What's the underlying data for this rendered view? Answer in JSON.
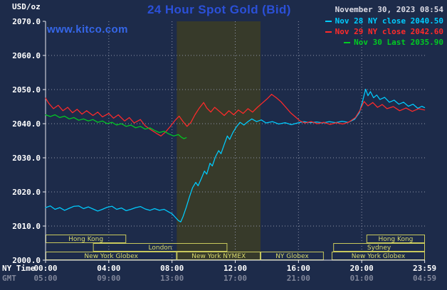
{
  "header": {
    "units": "USD/oz",
    "title": "24 Hour Spot Gold (Bid)",
    "datetime": "November 30, 2023 08:54",
    "site": "www.kitco.com"
  },
  "legend": [
    {
      "label": "Nov 28 NY close 2040.50",
      "color": "#00ccff"
    },
    {
      "label": "Nov 29 NY close 2042.60",
      "color": "#ff2a2a"
    },
    {
      "label": "Nov 30 Last 2035.90",
      "color": "#00cc22"
    }
  ],
  "axes": {
    "ny_time_label": "NY Time",
    "gmt_label": "GMT",
    "y_ticks": [
      {
        "value": 2070,
        "label": "2070.0"
      },
      {
        "value": 2060,
        "label": "2060.0"
      },
      {
        "value": 2050,
        "label": "2050.0"
      },
      {
        "value": 2040,
        "label": "2040.0"
      },
      {
        "value": 2030,
        "label": "2030.0"
      },
      {
        "value": 2020,
        "label": "2020.0"
      },
      {
        "value": 2010,
        "label": "2010.0"
      },
      {
        "value": 2000,
        "label": "2000.0"
      }
    ],
    "x_ticks": [
      {
        "hour": 0,
        "ny": "00:00",
        "gmt": "05:00"
      },
      {
        "hour": 4,
        "ny": "04:00",
        "gmt": "09:00"
      },
      {
        "hour": 8,
        "ny": "08:00",
        "gmt": "13:00"
      },
      {
        "hour": 12,
        "ny": "12:00",
        "gmt": "17:00"
      },
      {
        "hour": 16,
        "ny": "16:00",
        "gmt": "21:00"
      },
      {
        "hour": 20,
        "ny": "20:00",
        "gmt": "01:00"
      },
      {
        "hour": 23.983,
        "ny": "23:59",
        "gmt": "04:59"
      }
    ]
  },
  "sessions": [
    {
      "row": 0,
      "label": "Hong Kong",
      "start": 0,
      "end": 5.1
    },
    {
      "row": 0,
      "label": "Hong Kong",
      "start": 20.3,
      "end": 24
    },
    {
      "row": 1,
      "label": "London",
      "start": 3.0,
      "end": 11.5
    },
    {
      "row": 1,
      "label": "Sydney",
      "start": 18.2,
      "end": 24
    },
    {
      "row": 2,
      "label": "New York Globex",
      "start": 0,
      "end": 8.3
    },
    {
      "row": 2,
      "label": "New York NYMEX",
      "start": 8.3,
      "end": 13.6
    },
    {
      "row": 2,
      "label": "NY Globex",
      "start": 13.6,
      "end": 17.6
    },
    {
      "row": 2,
      "label": "New York Globex",
      "start": 18.1,
      "end": 24
    }
  ],
  "colors": {
    "background": "#1d2b4a",
    "band": "#373a2a",
    "grid": "#8f94a8",
    "axis": "#e9e9f0",
    "session_border": "#c8c95c",
    "session_text": "#d9da6b",
    "title": "#2b50d8",
    "site_link": "#3566e8",
    "datetime_text": "#dcdce6",
    "tick_text": "#ffffff",
    "gmt_text": "#80869a"
  },
  "chart_data": {
    "type": "line",
    "title": "24 Hour Spot Gold (Bid)",
    "ylabel": "USD/oz",
    "xlabel": "NY Time (hours)",
    "ylim": [
      2000,
      2070
    ],
    "xlim_hours": [
      0,
      24
    ],
    "grid": true,
    "legend_position": "top-right",
    "nymex_band_hours": [
      8.3,
      13.6
    ],
    "series": [
      {
        "id": "nov28",
        "name": "Nov 28 NY close 2040.50",
        "color": "#00ccff",
        "points": [
          [
            0,
            2015.4
          ],
          [
            0.3,
            2015.9
          ],
          [
            0.6,
            2014.9
          ],
          [
            0.9,
            2015.4
          ],
          [
            1.2,
            2014.6
          ],
          [
            1.5,
            2015.2
          ],
          [
            1.8,
            2015.8
          ],
          [
            2.1,
            2015.9
          ],
          [
            2.4,
            2015.1
          ],
          [
            2.7,
            2015.6
          ],
          [
            3,
            2015.0
          ],
          [
            3.3,
            2014.4
          ],
          [
            3.6,
            2014.9
          ],
          [
            3.9,
            2015.5
          ],
          [
            4.2,
            2015.8
          ],
          [
            4.5,
            2014.9
          ],
          [
            4.8,
            2015.3
          ],
          [
            5.1,
            2014.5
          ],
          [
            5.4,
            2014.9
          ],
          [
            5.7,
            2015.4
          ],
          [
            6,
            2015.7
          ],
          [
            6.3,
            2015.0
          ],
          [
            6.6,
            2014.6
          ],
          [
            6.9,
            2015.1
          ],
          [
            7.2,
            2014.6
          ],
          [
            7.5,
            2014.9
          ],
          [
            7.8,
            2014.1
          ],
          [
            8.0,
            2013.6
          ],
          [
            8.2,
            2012.6
          ],
          [
            8.4,
            2011.6
          ],
          [
            8.55,
            2011.2
          ],
          [
            8.7,
            2012.8
          ],
          [
            8.9,
            2015.5
          ],
          [
            9.1,
            2018.5
          ],
          [
            9.3,
            2021.2
          ],
          [
            9.5,
            2022.8
          ],
          [
            9.65,
            2021.8
          ],
          [
            9.85,
            2023.9
          ],
          [
            10.05,
            2026.1
          ],
          [
            10.2,
            2025.2
          ],
          [
            10.4,
            2028.4
          ],
          [
            10.55,
            2027.6
          ],
          [
            10.75,
            2030.3
          ],
          [
            10.95,
            2032.1
          ],
          [
            11.1,
            2031.2
          ],
          [
            11.3,
            2033.9
          ],
          [
            11.5,
            2036.4
          ],
          [
            11.65,
            2035.4
          ],
          [
            11.85,
            2037.4
          ],
          [
            12.05,
            2038.9
          ],
          [
            12.3,
            2040.4
          ],
          [
            12.55,
            2039.6
          ],
          [
            12.8,
            2040.6
          ],
          [
            13.05,
            2041.4
          ],
          [
            13.35,
            2040.6
          ],
          [
            13.65,
            2041.1
          ],
          [
            13.95,
            2040.2
          ],
          [
            14.35,
            2040.6
          ],
          [
            14.75,
            2039.9
          ],
          [
            15.15,
            2040.3
          ],
          [
            15.55,
            2039.7
          ],
          [
            15.95,
            2040.2
          ],
          [
            16.35,
            2040.6
          ],
          [
            16.75,
            2040.3
          ],
          [
            17.15,
            2040.5
          ],
          [
            17.55,
            2040.2
          ],
          [
            17.95,
            2040.6
          ],
          [
            18.35,
            2040.3
          ],
          [
            18.75,
            2040.7
          ],
          [
            19.15,
            2040.4
          ],
          [
            19.55,
            2041.3
          ],
          [
            19.85,
            2043.2
          ],
          [
            20.05,
            2046.5
          ],
          [
            20.25,
            2050.1
          ],
          [
            20.4,
            2048.2
          ],
          [
            20.55,
            2049.4
          ],
          [
            20.75,
            2047.6
          ],
          [
            20.95,
            2048.4
          ],
          [
            21.15,
            2047.1
          ],
          [
            21.45,
            2047.7
          ],
          [
            21.75,
            2046.3
          ],
          [
            22.05,
            2046.9
          ],
          [
            22.35,
            2045.7
          ],
          [
            22.65,
            2046.3
          ],
          [
            22.95,
            2045.1
          ],
          [
            23.25,
            2045.7
          ],
          [
            23.55,
            2044.5
          ],
          [
            23.8,
            2045.1
          ],
          [
            23.98,
            2044.7
          ]
        ]
      },
      {
        "id": "nov29",
        "name": "Nov 29 NY close 2042.60",
        "color": "#ff2a2a",
        "points": [
          [
            0,
            2047.5
          ],
          [
            0.2,
            2046.0
          ],
          [
            0.5,
            2044.4
          ],
          [
            0.8,
            2045.4
          ],
          [
            1.1,
            2043.8
          ],
          [
            1.4,
            2044.8
          ],
          [
            1.7,
            2043.2
          ],
          [
            2,
            2044.2
          ],
          [
            2.3,
            2042.8
          ],
          [
            2.6,
            2043.8
          ],
          [
            3,
            2042.4
          ],
          [
            3.3,
            2043.4
          ],
          [
            3.6,
            2042.0
          ],
          [
            4,
            2043.0
          ],
          [
            4.3,
            2041.6
          ],
          [
            4.6,
            2042.6
          ],
          [
            5,
            2040.8
          ],
          [
            5.3,
            2041.8
          ],
          [
            5.6,
            2040.2
          ],
          [
            6,
            2041.2
          ],
          [
            6.3,
            2039.4
          ],
          [
            6.6,
            2038.4
          ],
          [
            7,
            2037.2
          ],
          [
            7.3,
            2036.4
          ],
          [
            7.6,
            2037.6
          ],
          [
            7.9,
            2039.2
          ],
          [
            8.2,
            2041.0
          ],
          [
            8.45,
            2042.2
          ],
          [
            8.7,
            2040.6
          ],
          [
            8.95,
            2039.2
          ],
          [
            9.2,
            2040.4
          ],
          [
            9.45,
            2042.6
          ],
          [
            9.7,
            2044.4
          ],
          [
            10,
            2046.2
          ],
          [
            10.2,
            2044.6
          ],
          [
            10.45,
            2043.4
          ],
          [
            10.7,
            2044.8
          ],
          [
            11,
            2043.6
          ],
          [
            11.3,
            2042.4
          ],
          [
            11.6,
            2043.8
          ],
          [
            11.9,
            2042.6
          ],
          [
            12.2,
            2044.0
          ],
          [
            12.5,
            2043.0
          ],
          [
            12.8,
            2044.4
          ],
          [
            13.1,
            2043.4
          ],
          [
            13.4,
            2044.8
          ],
          [
            13.7,
            2046.0
          ],
          [
            14,
            2047.2
          ],
          [
            14.3,
            2048.6
          ],
          [
            14.6,
            2047.6
          ],
          [
            14.9,
            2046.4
          ],
          [
            15.2,
            2044.8
          ],
          [
            15.5,
            2043.2
          ],
          [
            15.8,
            2042.0
          ],
          [
            16.1,
            2040.8
          ],
          [
            16.4,
            2040.2
          ],
          [
            16.8,
            2040.6
          ],
          [
            17.2,
            2040.0
          ],
          [
            17.6,
            2040.4
          ],
          [
            18,
            2039.8
          ],
          [
            18.4,
            2040.3
          ],
          [
            18.8,
            2039.9
          ],
          [
            19.2,
            2040.5
          ],
          [
            19.6,
            2041.8
          ],
          [
            19.9,
            2044.0
          ],
          [
            20.15,
            2046.5
          ],
          [
            20.4,
            2045.2
          ],
          [
            20.7,
            2046.2
          ],
          [
            21,
            2044.8
          ],
          [
            21.3,
            2045.6
          ],
          [
            21.6,
            2044.4
          ],
          [
            22,
            2045.0
          ],
          [
            22.4,
            2043.8
          ],
          [
            22.8,
            2044.6
          ],
          [
            23.2,
            2043.6
          ],
          [
            23.6,
            2044.4
          ],
          [
            23.98,
            2044.0
          ]
        ]
      },
      {
        "id": "nov30",
        "name": "Nov 30 Last 2035.90",
        "color": "#00cc22",
        "points": [
          [
            0,
            2042.6
          ],
          [
            0.3,
            2042.1
          ],
          [
            0.6,
            2042.6
          ],
          [
            0.9,
            2041.8
          ],
          [
            1.2,
            2042.2
          ],
          [
            1.5,
            2041.4
          ],
          [
            1.8,
            2041.8
          ],
          [
            2.1,
            2041.0
          ],
          [
            2.4,
            2041.4
          ],
          [
            2.7,
            2040.8
          ],
          [
            3,
            2041.2
          ],
          [
            3.3,
            2040.4
          ],
          [
            3.6,
            2040.8
          ],
          [
            3.9,
            2040.0
          ],
          [
            4.2,
            2040.4
          ],
          [
            4.5,
            2039.6
          ],
          [
            4.8,
            2040.0
          ],
          [
            5.1,
            2039.2
          ],
          [
            5.4,
            2039.6
          ],
          [
            5.7,
            2038.8
          ],
          [
            6,
            2039.2
          ],
          [
            6.3,
            2038.4
          ],
          [
            6.6,
            2038.8
          ],
          [
            6.9,
            2038.0
          ],
          [
            7.2,
            2037.4
          ],
          [
            7.5,
            2037.8
          ],
          [
            7.8,
            2037.0
          ],
          [
            8.1,
            2036.4
          ],
          [
            8.4,
            2036.8
          ],
          [
            8.6,
            2036.0
          ],
          [
            8.75,
            2035.6
          ],
          [
            8.9,
            2035.9
          ]
        ]
      }
    ]
  }
}
